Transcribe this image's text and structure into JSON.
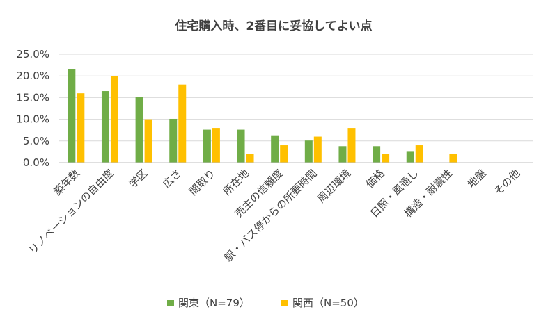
{
  "chart_data": {
    "type": "bar",
    "title": "住宅購入時、2番目に妥協してよい点",
    "xlabel": "",
    "ylabel": "",
    "ylim": [
      0,
      25
    ],
    "yticks": [
      "0.0%",
      "5.0%",
      "10.0%",
      "15.0%",
      "20.0%",
      "25.0%"
    ],
    "grid": true,
    "legend_position": "bottom",
    "categories": [
      "築年数",
      "リノベーションの自由度",
      "学区",
      "広さ",
      "間取り",
      "所在地",
      "売主の信頼度",
      "駅・バス停からの所要時間",
      "周辺環境",
      "価格",
      "日照・風通し",
      "構造・耐震性",
      "地盤",
      "その他"
    ],
    "series": [
      {
        "name": "関東（N=79）",
        "color": "#70ad47",
        "values": [
          21.5,
          16.5,
          15.2,
          10.1,
          7.6,
          7.6,
          6.3,
          5.1,
          3.8,
          3.8,
          2.5,
          0,
          0,
          0
        ]
      },
      {
        "name": "関西（N=50）",
        "color": "#ffc000",
        "values": [
          16.0,
          20.0,
          10.0,
          18.0,
          8.0,
          2.0,
          4.0,
          6.0,
          8.0,
          2.0,
          4.0,
          2.0,
          0,
          0
        ]
      }
    ]
  }
}
